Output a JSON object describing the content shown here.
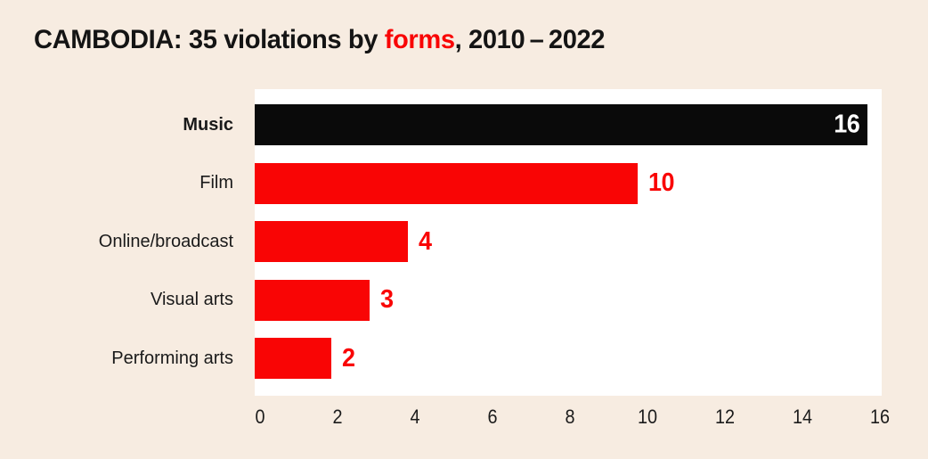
{
  "title": {
    "prefix": "CAMBODIA: 35 violations by ",
    "highlight": "forms",
    "suffix": ", 2010 – 2022"
  },
  "chart_data": {
    "type": "bar",
    "orientation": "horizontal",
    "title": "CAMBODIA: 35 violations by forms, 2010–2022",
    "categories": [
      "Music",
      "Film",
      "Online/broadcast",
      "Visual arts",
      "Performing arts"
    ],
    "values": [
      16,
      10,
      4,
      3,
      2
    ],
    "total_violations": 35,
    "bar_colors": [
      "#0a0a0a",
      "#f90505",
      "#f90505",
      "#f90505",
      "#f90505"
    ],
    "value_label_colors": [
      "#ffffff",
      "#f90505",
      "#f90505",
      "#f90505",
      "#f90505"
    ],
    "value_label_placement": [
      "inside-end",
      "outside-end",
      "outside-end",
      "outside-end",
      "outside-end"
    ],
    "xlabel": "",
    "ylabel": "",
    "x_ticks": [
      0,
      2,
      4,
      6,
      8,
      10,
      12,
      14,
      16
    ],
    "xlim": [
      0,
      16.35
    ],
    "grid": false,
    "legend": "none",
    "plot_background": "#ffffff",
    "page_background": "#f7ece1",
    "accent_red": "#f90505",
    "highlight_category": "Music"
  }
}
